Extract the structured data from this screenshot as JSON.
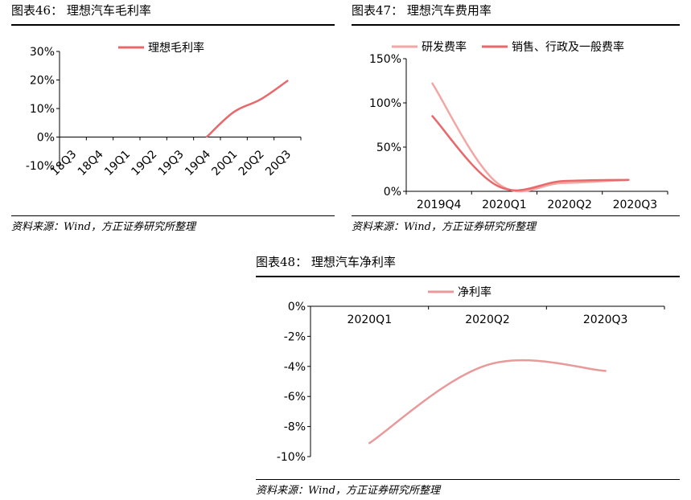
{
  "charts": [
    {
      "title": "图表46： 理想汽车毛利率",
      "source": "资料来源：Wind，方正证券研究所整理",
      "chart_data": {
        "type": "line",
        "categories": [
          "18Q3",
          "18Q4",
          "19Q1",
          "19Q2",
          "19Q3",
          "19Q4",
          "20Q1",
          "20Q2",
          "20Q3"
        ],
        "series": [
          {
            "name": "理想毛利率",
            "values": [
              null,
              null,
              null,
              null,
              null,
              0.1,
              8.8,
              13.2,
              19.7
            ],
            "color": "#e8696b"
          }
        ],
        "ylim": [
          -10,
          30
        ],
        "yticks": [
          -10,
          0,
          10,
          20,
          30
        ],
        "ytick_labels": [
          "-10%",
          "0%",
          "10%",
          "20%",
          "30%"
        ],
        "xlabel": "",
        "ylabel": "",
        "legend": "top-center",
        "grid": false
      }
    },
    {
      "title": "图表47： 理想汽车费用率",
      "source": "资料来源：Wind，方正证券研究所整理",
      "chart_data": {
        "type": "line",
        "categories": [
          "2019Q4",
          "2020Q1",
          "2020Q2",
          "2020Q3"
        ],
        "series": [
          {
            "name": "研发费率",
            "values": [
              122,
              9,
              9.5,
              13
            ],
            "color": "#f2a7a4"
          },
          {
            "name": "销售、行政及一般费率",
            "values": [
              85,
              6,
              11.5,
              13
            ],
            "color": "#e8696b"
          }
        ],
        "ylim": [
          0,
          150
        ],
        "yticks": [
          0,
          50,
          100,
          150
        ],
        "ytick_labels": [
          "0%",
          "50%",
          "100%",
          "150%"
        ],
        "xlabel": "",
        "ylabel": "",
        "legend": "top",
        "grid": false
      }
    },
    {
      "title": "图表48： 理想汽车净利率",
      "source": "资料来源：Wind，方正证券研究所整理",
      "chart_data": {
        "type": "line",
        "categories": [
          "2020Q1",
          "2020Q2",
          "2020Q3"
        ],
        "series": [
          {
            "name": "净利率",
            "values": [
              -9.1,
              -3.9,
              -4.3
            ],
            "color": "#e8999a"
          }
        ],
        "ylim": [
          -10,
          0
        ],
        "yticks": [
          -10,
          -8,
          -6,
          -4,
          -2,
          0
        ],
        "ytick_labels": [
          "-10%",
          "-8%",
          "-6%",
          "-4%",
          "-2%",
          "0%"
        ],
        "xlabel": "",
        "ylabel": "",
        "legend": "top-center",
        "grid": false
      }
    }
  ]
}
